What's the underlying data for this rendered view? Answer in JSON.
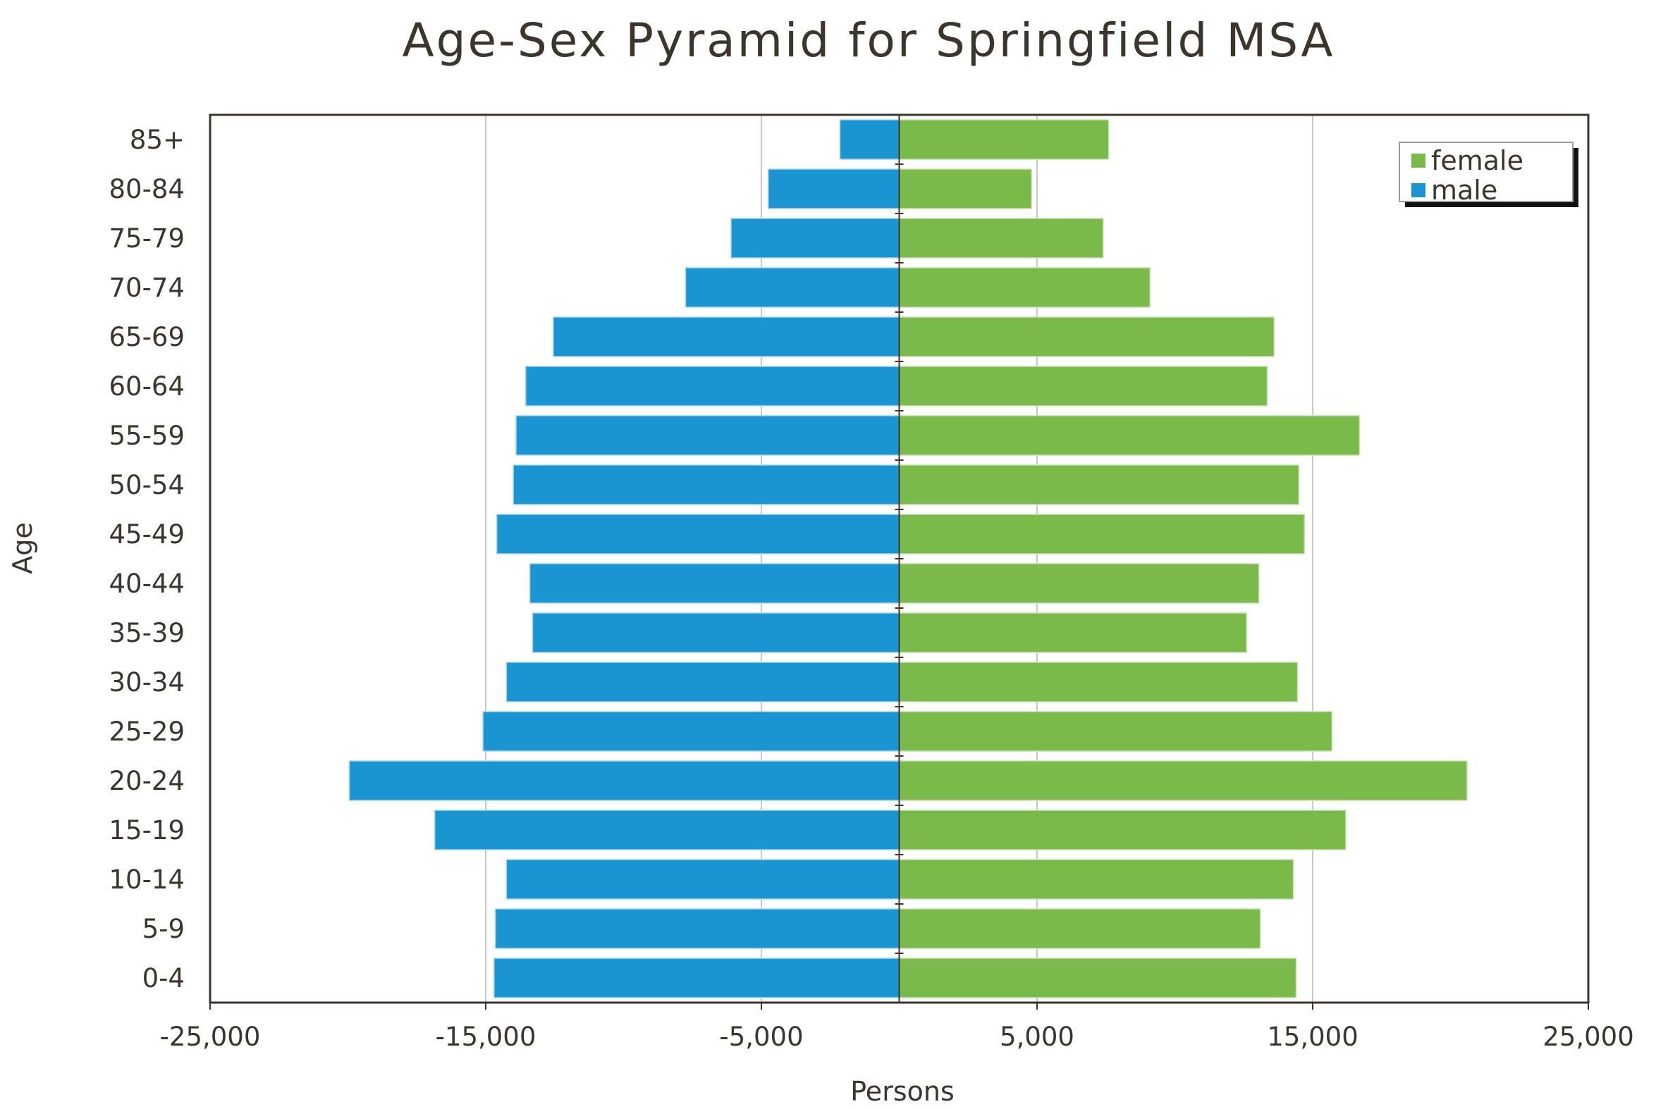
{
  "chart_data": {
    "type": "bar",
    "orientation": "horizontal",
    "title": "Age-Sex Pyramid for Springfield MSA",
    "xlabel": "Persons",
    "ylabel": "Age",
    "xlim": [
      -25000,
      25000
    ],
    "xticks": [
      -25000,
      -15000,
      -5000,
      5000,
      15000,
      25000
    ],
    "xtick_labels": [
      "-25,000",
      "-15,000",
      "-5,000",
      "5,000",
      "15,000",
      "25,000"
    ],
    "grid": "vertical",
    "legend_position": "top-right",
    "categories": [
      "85+",
      "80-84",
      "75-79",
      "70-74",
      "65-69",
      "60-64",
      "55-59",
      "50-54",
      "45-49",
      "40-44",
      "35-39",
      "30-34",
      "25-29",
      "20-24",
      "15-19",
      "10-14",
      "5-9",
      "0-4"
    ],
    "series": [
      {
        "name": "female",
        "color": "#7aba4b",
        "values": [
          7600,
          4800,
          7400,
          9100,
          13600,
          13350,
          16700,
          14500,
          14700,
          13050,
          12600,
          14450,
          15700,
          20600,
          16200,
          14300,
          13100,
          14400
        ]
      },
      {
        "name": "male",
        "color": "#1b95d2",
        "values": [
          -2150,
          -4750,
          -6100,
          -7750,
          -12550,
          -13550,
          -13900,
          -14000,
          -14600,
          -13400,
          -13300,
          -14250,
          -15100,
          -19950,
          -16850,
          -14250,
          -14650,
          -14700
        ]
      }
    ]
  }
}
